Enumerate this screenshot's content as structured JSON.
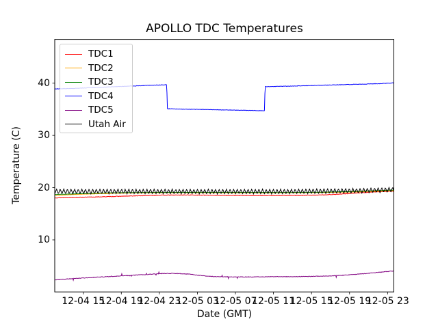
{
  "chart_data": {
    "type": "line",
    "title": "APOLLO TDC Temperatures",
    "xlabel": "Date (GMT)",
    "ylabel": "Temperature (C)",
    "x_unit": "hours since 12-04 00:00 GMT",
    "xlim_hours": [
      12.0,
      47.66
    ],
    "ylim": [
      0.03,
      48.39
    ],
    "grid": false,
    "legend_position": "upper left",
    "x_ticks": [
      {
        "hour": 15,
        "label": "12-04 15"
      },
      {
        "hour": 19,
        "label": "12-04 19"
      },
      {
        "hour": 23,
        "label": "12-04 23"
      },
      {
        "hour": 27,
        "label": "12-05 03"
      },
      {
        "hour": 31,
        "label": "12-05 07"
      },
      {
        "hour": 35,
        "label": "12-05 11"
      },
      {
        "hour": 39,
        "label": "12-05 15"
      },
      {
        "hour": 43,
        "label": "12-05 19"
      },
      {
        "hour": 47,
        "label": "12-05 23"
      }
    ],
    "y_ticks": [
      {
        "value": 10,
        "label": "10"
      },
      {
        "value": 20,
        "label": "20"
      },
      {
        "value": 30,
        "label": "30"
      },
      {
        "value": 40,
        "label": "40"
      }
    ],
    "series": [
      {
        "name": "TDC1",
        "color": "#ff0000",
        "noise": 0.05,
        "keypoints": [
          [
            12,
            18.05
          ],
          [
            16,
            18.2
          ],
          [
            20,
            18.4
          ],
          [
            23,
            18.55
          ],
          [
            26,
            18.6
          ],
          [
            30,
            18.5
          ],
          [
            34,
            18.48
          ],
          [
            38,
            18.52
          ],
          [
            40,
            18.6
          ],
          [
            42,
            18.75
          ],
          [
            44,
            19.0
          ],
          [
            46,
            19.2
          ],
          [
            47.66,
            19.35
          ]
        ]
      },
      {
        "name": "TDC2",
        "color": "#ffa500",
        "noise": 0.03,
        "keypoints": [
          [
            12,
            18.5
          ],
          [
            14,
            18.68
          ],
          [
            16,
            18.8
          ],
          [
            18,
            18.9
          ],
          [
            20,
            18.97
          ],
          [
            24,
            19.02
          ],
          [
            28,
            19.02
          ],
          [
            32,
            19.0
          ],
          [
            36,
            19.0
          ],
          [
            40,
            19.05
          ],
          [
            44,
            19.2
          ],
          [
            47.66,
            19.42
          ]
        ]
      },
      {
        "name": "TDC3",
        "color": "#008000",
        "noise": 0.025,
        "keypoints": [
          [
            12,
            18.68
          ],
          [
            14,
            18.8
          ],
          [
            16,
            18.9
          ],
          [
            18,
            19.0
          ],
          [
            20,
            19.05
          ],
          [
            24,
            19.1
          ],
          [
            28,
            19.1
          ],
          [
            32,
            19.08
          ],
          [
            36,
            19.07
          ],
          [
            40,
            19.12
          ],
          [
            44,
            19.3
          ],
          [
            47.66,
            19.55
          ]
        ]
      },
      {
        "name": "TDC4",
        "color": "#0000ff",
        "noise": 0.04,
        "keypoints": [
          [
            12,
            38.9
          ],
          [
            14,
            39.0
          ],
          [
            16,
            39.15
          ],
          [
            18,
            39.3
          ],
          [
            20,
            39.45
          ],
          [
            22,
            39.6
          ],
          [
            23.78,
            39.7
          ],
          [
            23.84,
            35.1
          ],
          [
            26,
            35.0
          ],
          [
            28,
            34.95
          ],
          [
            30,
            34.87
          ],
          [
            32,
            34.8
          ],
          [
            34.05,
            34.72
          ],
          [
            34.12,
            39.35
          ],
          [
            36,
            39.4
          ],
          [
            38,
            39.5
          ],
          [
            40,
            39.6
          ],
          [
            42,
            39.7
          ],
          [
            44,
            39.8
          ],
          [
            46,
            39.9
          ],
          [
            47.2,
            40.0
          ],
          [
            47.66,
            40.05
          ]
        ]
      },
      {
        "name": "TDC5",
        "color": "#800080",
        "noise": 0.05,
        "spike_chance": 0.012,
        "spike_size": 0.25,
        "keypoints": [
          [
            12,
            2.35
          ],
          [
            14,
            2.6
          ],
          [
            16,
            2.8
          ],
          [
            18,
            3.0
          ],
          [
            20,
            3.2
          ],
          [
            22,
            3.4
          ],
          [
            23.2,
            3.55
          ],
          [
            24.6,
            3.58
          ],
          [
            26,
            3.45
          ],
          [
            27,
            3.25
          ],
          [
            28,
            3.05
          ],
          [
            29,
            2.95
          ],
          [
            31,
            2.9
          ],
          [
            33,
            2.9
          ],
          [
            35,
            2.95
          ],
          [
            37,
            2.95
          ],
          [
            39,
            3.0
          ],
          [
            41,
            3.1
          ],
          [
            43,
            3.3
          ],
          [
            45,
            3.6
          ],
          [
            46.5,
            3.85
          ],
          [
            47.3,
            4.0
          ],
          [
            47.66,
            4.0
          ]
        ]
      },
      {
        "name": "Utah Air",
        "color": "#000000",
        "noise": 0.03,
        "sawtooth": {
          "period_hours": 0.38,
          "amplitude": 0.45
        },
        "keypoints": [
          [
            12,
            19.27
          ],
          [
            20,
            19.27
          ],
          [
            28,
            19.25
          ],
          [
            36,
            19.25
          ],
          [
            44,
            19.4
          ],
          [
            47.66,
            19.62
          ]
        ]
      }
    ],
    "events": [
      {
        "series": "TDC4",
        "description": "step drop 39.7 to 35.1",
        "hour": 23.8
      },
      {
        "series": "TDC4",
        "description": "step recovery 34.7 to 39.35",
        "hour": 34.1
      }
    ]
  }
}
